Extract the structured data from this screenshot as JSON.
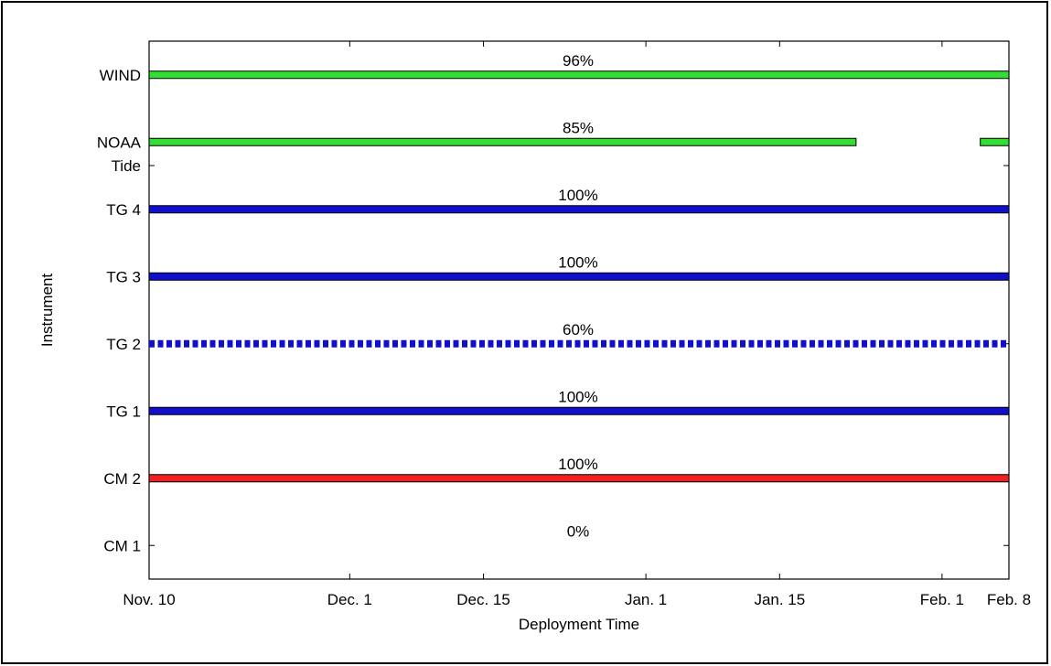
{
  "chart_data": {
    "type": "bar",
    "title": "",
    "xlabel": "Deployment Time",
    "ylabel": "Instrument",
    "x_ticks": [
      {
        "label": "Nov. 10",
        "day": 0
      },
      {
        "label": "Dec. 1",
        "day": 21
      },
      {
        "label": "Dec. 15",
        "day": 35
      },
      {
        "label": "Jan. 1",
        "day": 52
      },
      {
        "label": "Jan. 15",
        "day": 66
      },
      {
        "label": "Feb. 1",
        "day": 83
      },
      {
        "label": "Feb. 8",
        "day": 90
      }
    ],
    "xlim": [
      0,
      90
    ],
    "ylim": [
      0.5,
      8.5
    ],
    "y_ticks": [
      {
        "label": "CM 1",
        "y": 1
      },
      {
        "label": "CM 2",
        "y": 2
      },
      {
        "label": "TG 1",
        "y": 3
      },
      {
        "label": "TG 2",
        "y": 4
      },
      {
        "label": "TG 3",
        "y": 5
      },
      {
        "label": "TG 4",
        "y": 6
      },
      {
        "label": "Tide",
        "y": 6.65
      },
      {
        "label": "NOAA",
        "y": 7
      },
      {
        "label": "WIND",
        "y": 8
      }
    ],
    "series": [
      {
        "instrument": "WIND",
        "y": 8,
        "percent": "96%",
        "color": "#33dd33",
        "style": "solid",
        "segments": [
          [
            0,
            90
          ]
        ]
      },
      {
        "instrument": "NOAA",
        "y": 7,
        "percent": "85%",
        "color": "#33dd33",
        "style": "solid",
        "segments": [
          [
            0,
            74
          ],
          [
            87,
            90
          ]
        ]
      },
      {
        "instrument": "TG 4",
        "y": 6,
        "percent": "100%",
        "color": "#1010cc",
        "style": "solid",
        "segments": [
          [
            0,
            90
          ]
        ]
      },
      {
        "instrument": "TG 3",
        "y": 5,
        "percent": "100%",
        "color": "#1010cc",
        "style": "solid",
        "segments": [
          [
            0,
            90
          ]
        ]
      },
      {
        "instrument": "TG 2",
        "y": 4,
        "percent": "60%",
        "color": "#1010cc",
        "style": "dashed",
        "segments": [
          [
            0,
            90
          ]
        ]
      },
      {
        "instrument": "TG 1",
        "y": 3,
        "percent": "100%",
        "color": "#1010cc",
        "style": "solid",
        "segments": [
          [
            0,
            90
          ]
        ]
      },
      {
        "instrument": "CM 2",
        "y": 2,
        "percent": "100%",
        "color": "#ee2222",
        "style": "solid",
        "segments": [
          [
            0,
            90
          ]
        ]
      },
      {
        "instrument": "CM 1",
        "y": 1,
        "percent": "0%",
        "color": "#ee2222",
        "style": "solid",
        "segments": []
      }
    ],
    "grid": false,
    "legend": "none"
  }
}
